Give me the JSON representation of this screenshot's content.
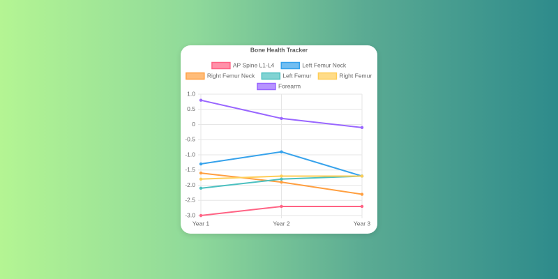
{
  "chart_data": {
    "type": "line",
    "title": "Bone Health Tracker",
    "categories": [
      "Year 1",
      "Year 2",
      "Year 3"
    ],
    "series": [
      {
        "name": "AP Spine L1-L4",
        "color": "#ff6384",
        "values": [
          -3.0,
          -2.7,
          -2.7
        ]
      },
      {
        "name": "Left Femur Neck",
        "color": "#36a2eb",
        "values": [
          -1.3,
          -0.9,
          -1.7
        ]
      },
      {
        "name": "Right Femur Neck",
        "color": "#ff9f40",
        "values": [
          -1.6,
          -1.9,
          -2.3
        ]
      },
      {
        "name": "Left Femur",
        "color": "#4bc0c0",
        "values": [
          -2.1,
          -1.8,
          -1.7
        ]
      },
      {
        "name": "Right Femur",
        "color": "#ffcd56",
        "values": [
          -1.8,
          -1.7,
          -1.7
        ]
      },
      {
        "name": "Forearm",
        "color": "#9966ff",
        "values": [
          0.8,
          0.2,
          -0.1
        ]
      }
    ],
    "ylim": [
      -3.0,
      1.0
    ],
    "yticks": [
      {
        "value": 1.0,
        "label": "1.0"
      },
      0.5,
      0,
      -0.5,
      {
        "value": -1.0,
        "label": "-1.0"
      },
      -1.5,
      {
        "value": -2.0,
        "label": "-2.0"
      },
      -2.5,
      {
        "value": -3.0,
        "label": "-3.0"
      }
    ],
    "grid": true
  }
}
